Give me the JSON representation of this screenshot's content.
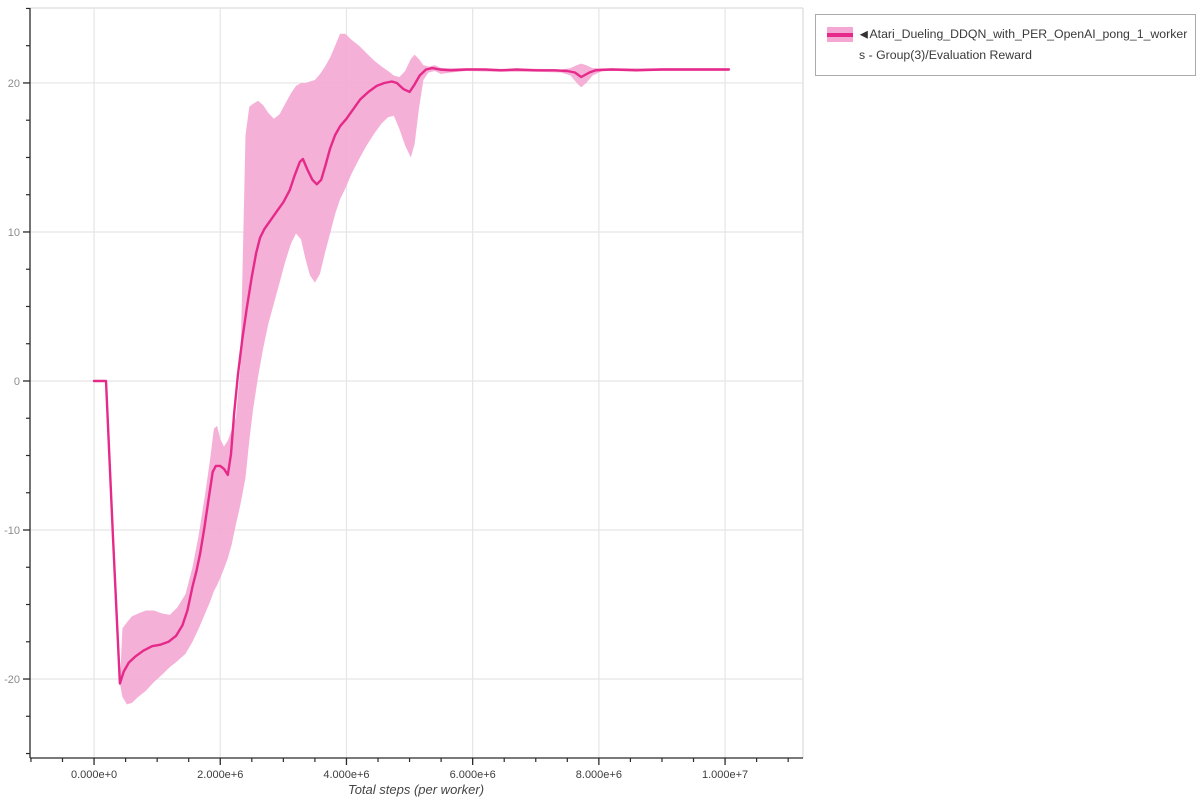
{
  "legend": {
    "marker": "◀",
    "line1": "Atari_Dueling_DDQN_with_PER_OpenAI_pong_1_worker",
    "line2": "s - Group(3)/Evaluation Reward"
  },
  "chart_data": {
    "type": "line",
    "title": "",
    "xlabel": "Total steps (per worker)",
    "ylabel": "",
    "grid": true,
    "legend_position": "top-right",
    "xlim": [
      -1015000,
      11235000
    ],
    "ylim": [
      -25.3,
      25.03
    ],
    "x_minor_step": 500000,
    "y_minor_step": 2.5,
    "x_ticks": [
      {
        "v": 0,
        "label": "0.000e+0"
      },
      {
        "v": 2000000,
        "label": "2.000e+6"
      },
      {
        "v": 4000000,
        "label": "4.000e+6"
      },
      {
        "v": 6000000,
        "label": "6.000e+6"
      },
      {
        "v": 8000000,
        "label": "8.000e+6"
      },
      {
        "v": 10000000,
        "label": "1.000e+7"
      }
    ],
    "y_ticks": [
      {
        "v": 20,
        "label": "20"
      },
      {
        "v": 10,
        "label": "10"
      },
      {
        "v": 0,
        "label": "0"
      },
      {
        "v": -10,
        "label": "-10"
      },
      {
        "v": -20,
        "label": "-20"
      }
    ],
    "colors": {
      "line": "#e52a8a",
      "band": "#f4a7d3",
      "grid": "#e5e5e5",
      "axis": "#2a2a2a",
      "x_tick_label": "#3d3d3d",
      "y_tick_label": "#8c8c8c",
      "border": "#e2e2e2"
    },
    "series": [
      {
        "name": "Atari_Dueling_DDQN_with_PER_OpenAI_pong_1_workers - Group(3)/Evaluation Reward",
        "mean": [
          [
            0,
            0
          ],
          [
            190000,
            0
          ],
          [
            300000,
            -10.5
          ],
          [
            410000,
            -20.3
          ],
          [
            470000,
            -19.5
          ],
          [
            550000,
            -18.9
          ],
          [
            650000,
            -18.5
          ],
          [
            780000,
            -18.1
          ],
          [
            920000,
            -17.8
          ],
          [
            1050000,
            -17.7
          ],
          [
            1180000,
            -17.5
          ],
          [
            1300000,
            -17.1
          ],
          [
            1400000,
            -16.4
          ],
          [
            1480000,
            -15.4
          ],
          [
            1560000,
            -13.8
          ],
          [
            1620000,
            -12.8
          ],
          [
            1680000,
            -11.6
          ],
          [
            1750000,
            -9.8
          ],
          [
            1820000,
            -7.8
          ],
          [
            1880000,
            -6.1
          ],
          [
            1930000,
            -5.7
          ],
          [
            2000000,
            -5.7
          ],
          [
            2060000,
            -5.9
          ],
          [
            2120000,
            -6.3
          ],
          [
            2170000,
            -4.9
          ],
          [
            2220000,
            -2.2
          ],
          [
            2280000,
            0.4
          ],
          [
            2350000,
            2.8
          ],
          [
            2420000,
            4.9
          ],
          [
            2500000,
            7.0
          ],
          [
            2570000,
            8.6
          ],
          [
            2630000,
            9.6
          ],
          [
            2700000,
            10.2
          ],
          [
            2800000,
            10.8
          ],
          [
            2900000,
            11.4
          ],
          [
            3000000,
            12.0
          ],
          [
            3100000,
            12.8
          ],
          [
            3180000,
            13.8
          ],
          [
            3260000,
            14.7
          ],
          [
            3310000,
            14.9
          ],
          [
            3380000,
            14.2
          ],
          [
            3460000,
            13.5
          ],
          [
            3530000,
            13.2
          ],
          [
            3600000,
            13.5
          ],
          [
            3670000,
            14.5
          ],
          [
            3740000,
            15.6
          ],
          [
            3820000,
            16.5
          ],
          [
            3900000,
            17.1
          ],
          [
            4000000,
            17.6
          ],
          [
            4100000,
            18.2
          ],
          [
            4220000,
            18.9
          ],
          [
            4350000,
            19.4
          ],
          [
            4480000,
            19.8
          ],
          [
            4600000,
            20.0
          ],
          [
            4720000,
            20.1
          ],
          [
            4800000,
            20.0
          ],
          [
            4900000,
            19.6
          ],
          [
            5000000,
            19.4
          ],
          [
            5080000,
            19.9
          ],
          [
            5160000,
            20.5
          ],
          [
            5260000,
            20.9
          ],
          [
            5360000,
            21.0
          ],
          [
            5480000,
            20.9
          ],
          [
            5650000,
            20.85
          ],
          [
            5900000,
            20.9
          ],
          [
            6200000,
            20.9
          ],
          [
            6450000,
            20.85
          ],
          [
            6700000,
            20.9
          ],
          [
            7000000,
            20.85
          ],
          [
            7300000,
            20.85
          ],
          [
            7500000,
            20.8
          ],
          [
            7620000,
            20.7
          ],
          [
            7720000,
            20.4
          ],
          [
            7850000,
            20.7
          ],
          [
            7950000,
            20.85
          ],
          [
            8200000,
            20.9
          ],
          [
            8600000,
            20.85
          ],
          [
            9000000,
            20.9
          ],
          [
            9500000,
            20.9
          ],
          [
            10060000,
            20.9
          ]
        ],
        "band": [
          [
            410000,
            -20.3,
            -20.3
          ],
          [
            450000,
            -21.2,
            -16.6
          ],
          [
            520000,
            -21.7,
            -16.2
          ],
          [
            600000,
            -21.6,
            -15.8
          ],
          [
            700000,
            -21.2,
            -15.6
          ],
          [
            820000,
            -20.8,
            -15.4
          ],
          [
            950000,
            -20.2,
            -15.4
          ],
          [
            1080000,
            -19.7,
            -15.6
          ],
          [
            1200000,
            -19.2,
            -15.7
          ],
          [
            1320000,
            -18.8,
            -15.2
          ],
          [
            1450000,
            -18.3,
            -14.3
          ],
          [
            1560000,
            -17.5,
            -12.5
          ],
          [
            1660000,
            -16.6,
            -10.3
          ],
          [
            1760000,
            -15.6,
            -7.6
          ],
          [
            1840000,
            -14.8,
            -5.2
          ],
          [
            1900000,
            -14.1,
            -3.2
          ],
          [
            1950000,
            -13.7,
            -3.0
          ],
          [
            2000000,
            -13.2,
            -3.9
          ],
          [
            2060000,
            -12.6,
            -4.4
          ],
          [
            2120000,
            -11.9,
            -4.0
          ],
          [
            2180000,
            -11.0,
            -3.3
          ],
          [
            2250000,
            -9.6,
            -2.4
          ],
          [
            2320000,
            -8.3,
            1.0
          ],
          [
            2400000,
            -6.5,
            16.5
          ],
          [
            2460000,
            -4.0,
            18.4
          ],
          [
            2520000,
            -1.9,
            18.6
          ],
          [
            2600000,
            0.3,
            18.8
          ],
          [
            2680000,
            2.2,
            18.5
          ],
          [
            2760000,
            3.8,
            18.0
          ],
          [
            2850000,
            5.2,
            17.6
          ],
          [
            2940000,
            6.6,
            17.9
          ],
          [
            3030000,
            8.0,
            18.6
          ],
          [
            3120000,
            9.2,
            19.3
          ],
          [
            3200000,
            9.9,
            19.8
          ],
          [
            3280000,
            9.5,
            20.0
          ],
          [
            3350000,
            8.2,
            20.0
          ],
          [
            3420000,
            7.1,
            20.1
          ],
          [
            3500000,
            6.6,
            20.2
          ],
          [
            3580000,
            7.2,
            20.6
          ],
          [
            3660000,
            8.6,
            21.1
          ],
          [
            3740000,
            9.9,
            21.7
          ],
          [
            3820000,
            11.2,
            22.5
          ],
          [
            3900000,
            12.2,
            23.3
          ],
          [
            3980000,
            12.9,
            23.3
          ],
          [
            4080000,
            13.9,
            22.9
          ],
          [
            4200000,
            14.9,
            22.5
          ],
          [
            4320000,
            15.8,
            22.0
          ],
          [
            4440000,
            16.6,
            21.5
          ],
          [
            4560000,
            17.3,
            21.1
          ],
          [
            4660000,
            17.7,
            20.8
          ],
          [
            4750000,
            17.8,
            20.5
          ],
          [
            4840000,
            16.9,
            20.4
          ],
          [
            4930000,
            15.8,
            20.8
          ],
          [
            5020000,
            15.0,
            21.6
          ],
          [
            5080000,
            15.9,
            21.9
          ],
          [
            5150000,
            18.3,
            21.6
          ],
          [
            5220000,
            20.2,
            21.2
          ],
          [
            5300000,
            20.7,
            21.1
          ],
          [
            5400000,
            20.8,
            21.2
          ],
          [
            5500000,
            20.6,
            21.0
          ],
          [
            5650000,
            20.7,
            21.0
          ],
          [
            5900000,
            20.8,
            21.0
          ],
          [
            6400000,
            20.75,
            20.95
          ],
          [
            7000000,
            20.75,
            20.95
          ],
          [
            7400000,
            20.7,
            20.9
          ],
          [
            7550000,
            20.5,
            21.0
          ],
          [
            7650000,
            20.0,
            21.2
          ],
          [
            7720000,
            19.7,
            21.3
          ],
          [
            7800000,
            20.0,
            21.2
          ],
          [
            7900000,
            20.5,
            21.0
          ],
          [
            8050000,
            20.8,
            21.0
          ],
          [
            8500000,
            20.8,
            21.0
          ],
          [
            9000000,
            20.8,
            21.0
          ],
          [
            9500000,
            20.8,
            21.0
          ],
          [
            10060000,
            20.8,
            21.0
          ]
        ]
      }
    ]
  }
}
